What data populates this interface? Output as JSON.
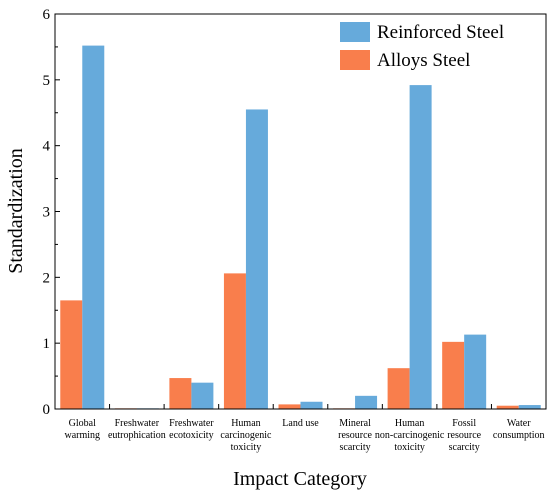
{
  "chart_data": {
    "type": "bar",
    "xlabel": "Impact Category",
    "ylabel": "Standardization",
    "ylim": [
      0,
      6
    ],
    "yticks": [
      0,
      1,
      2,
      3,
      4,
      5,
      6
    ],
    "grid": false,
    "legend_position": "top-right",
    "categories": [
      [
        "Global",
        "warming"
      ],
      [
        "Freshwater",
        "eutrophication"
      ],
      [
        "Freshwater",
        "ecotoxicity"
      ],
      [
        "Human",
        "carcinogenic",
        "toxicity"
      ],
      [
        "Land use"
      ],
      [
        "Mineral",
        "resource",
        "scarcity"
      ],
      [
        "Human",
        "non-carcinogenic",
        "toxicity"
      ],
      [
        "Fossil",
        "resource",
        "scarcity"
      ],
      [
        "Water",
        "consumption"
      ]
    ],
    "series": [
      {
        "name": "Alloys Steel",
        "color": "#F97E4C",
        "values": [
          1.65,
          0.01,
          0.47,
          2.06,
          0.07,
          0.01,
          0.62,
          1.02,
          0.05
        ]
      },
      {
        "name": "Reinforced Steel",
        "color": "#66AADB",
        "values": [
          5.52,
          0.01,
          0.4,
          4.55,
          0.11,
          0.2,
          4.92,
          1.13,
          0.06
        ]
      }
    ],
    "legend_order": [
      "Reinforced Steel",
      "Alloys Steel"
    ]
  }
}
